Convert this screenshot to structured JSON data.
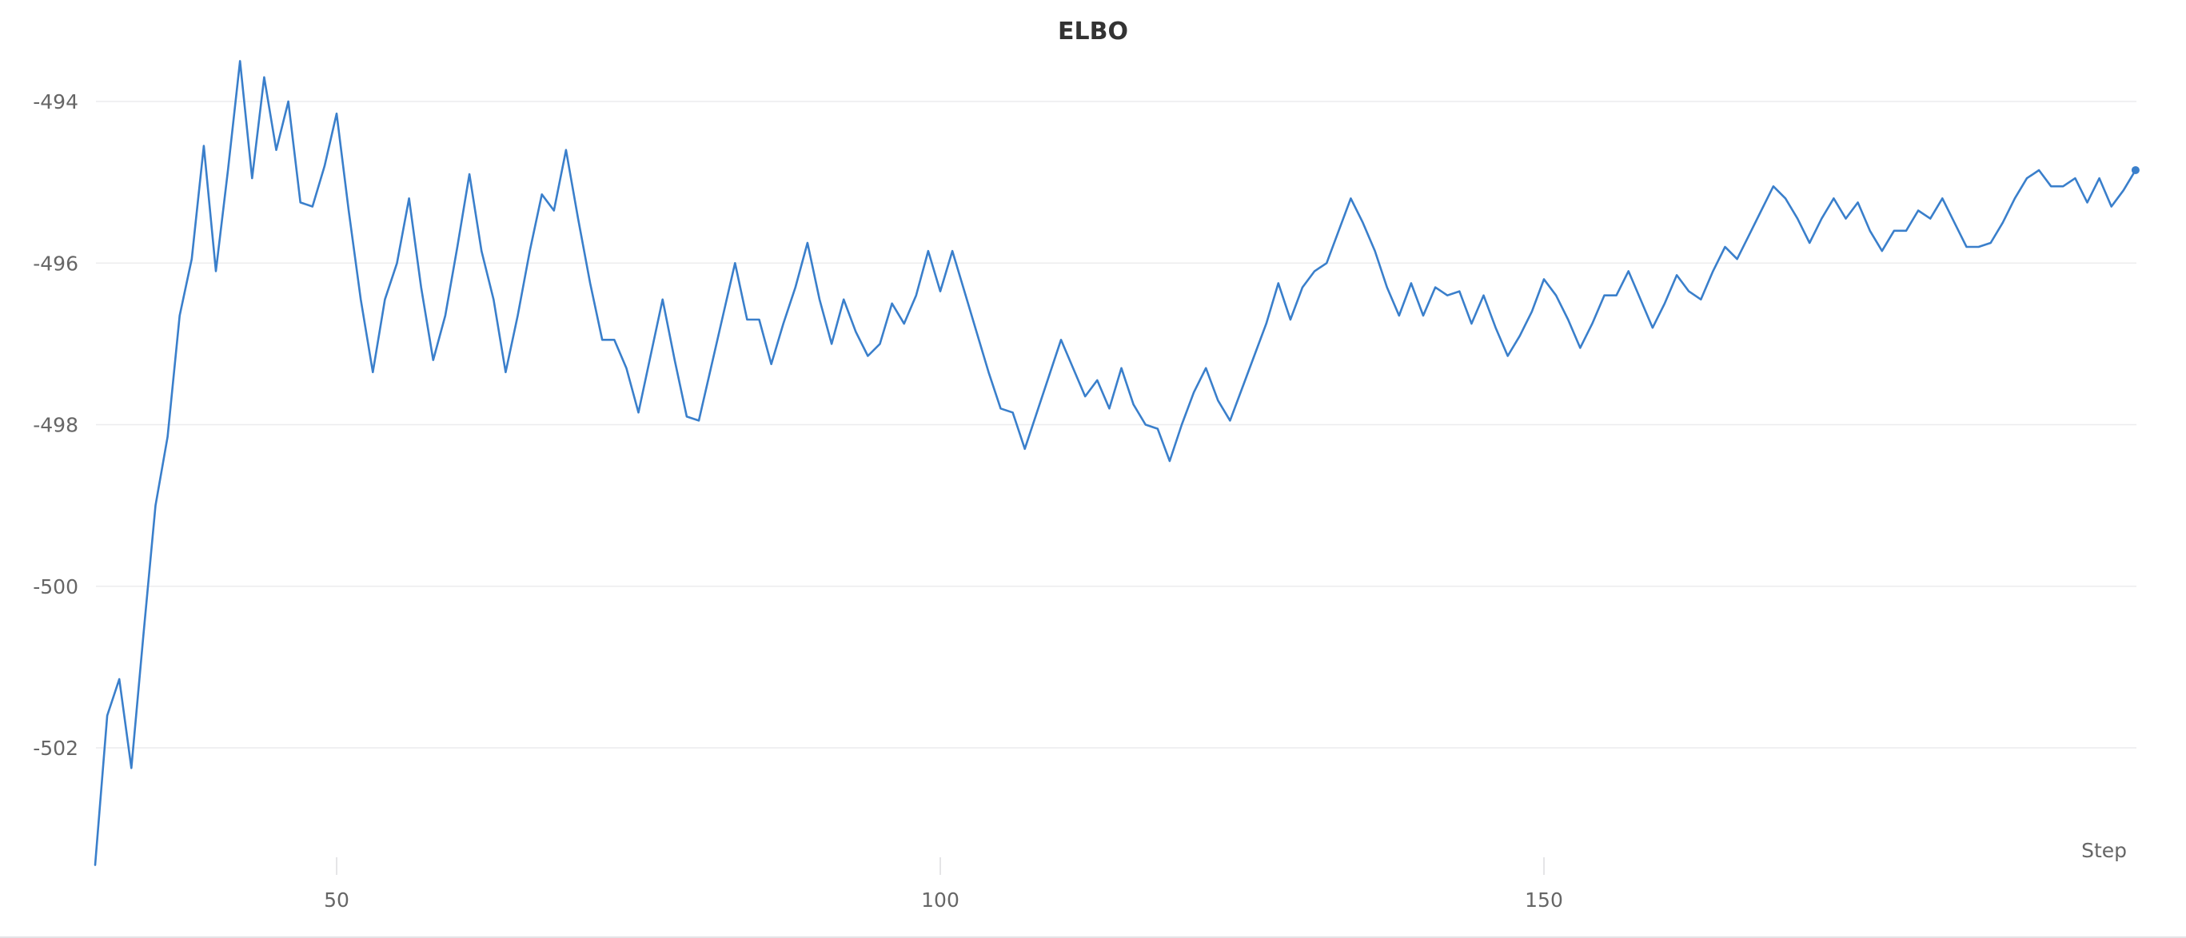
{
  "chart_data": {
    "type": "line",
    "title": "ELBO",
    "xlabel": "Step",
    "ylabel": "",
    "xlim": [
      30,
      199
    ],
    "ylim": [
      -503.5,
      -493.5
    ],
    "x_ticks": [
      50,
      100,
      150
    ],
    "y_ticks": [
      -494,
      -496,
      -498,
      -500,
      -502
    ],
    "grid": true,
    "legend": "none",
    "colors": {
      "line": "#3a7fcb",
      "grid": "#ececee",
      "tick_text": "#666666",
      "title": "#333333"
    },
    "series": [
      {
        "x": [
          30,
          31,
          32,
          33,
          34,
          35,
          36,
          37,
          38,
          39,
          40,
          41,
          42,
          43,
          44,
          45,
          46,
          47,
          48,
          49,
          50,
          51,
          52,
          53,
          54,
          55,
          56,
          57,
          58,
          59,
          60,
          61,
          62,
          63,
          64,
          65,
          66,
          67,
          68,
          69,
          70,
          71,
          72,
          73,
          74,
          75,
          76,
          77,
          78,
          79,
          80,
          81,
          82,
          83,
          84,
          85,
          86,
          87,
          88,
          89,
          90,
          91,
          92,
          93,
          94,
          95,
          96,
          97,
          98,
          99,
          100,
          101,
          102,
          103,
          104,
          105,
          106,
          107,
          108,
          109,
          110,
          111,
          112,
          113,
          114,
          115,
          116,
          117,
          118,
          119,
          120,
          121,
          122,
          123,
          124,
          125,
          126,
          127,
          128,
          129,
          130,
          131,
          132,
          133,
          134,
          135,
          136,
          137,
          138,
          139,
          140,
          141,
          142,
          143,
          144,
          145,
          146,
          147,
          148,
          149,
          150,
          151,
          152,
          153,
          154,
          155,
          156,
          157,
          158,
          159,
          160,
          161,
          162,
          163,
          164,
          165,
          166,
          167,
          168,
          169,
          170,
          171,
          172,
          173,
          174,
          175,
          176,
          177,
          178,
          179,
          180,
          181,
          182,
          183,
          184,
          185,
          186,
          187,
          188,
          189,
          190,
          191,
          192,
          193,
          194,
          195,
          196,
          197,
          198,
          199
        ],
        "values": [
          -503.45,
          -501.6,
          -501.15,
          -502.25,
          -500.6,
          -499.0,
          -498.15,
          -496.65,
          -495.95,
          -494.55,
          -496.1,
          -494.85,
          -493.5,
          -494.95,
          -493.7,
          -494.6,
          -494.0,
          -495.25,
          -495.3,
          -494.8,
          -494.15,
          -495.35,
          -496.45,
          -497.35,
          -496.45,
          -496.0,
          -495.2,
          -496.3,
          -497.2,
          -496.65,
          -495.8,
          -494.9,
          -495.85,
          -496.45,
          -497.35,
          -496.65,
          -495.85,
          -495.15,
          -495.35,
          -494.6,
          -495.45,
          -496.25,
          -496.95,
          -496.95,
          -497.3,
          -497.85,
          -497.15,
          -496.45,
          -497.2,
          -497.9,
          -497.95,
          -497.3,
          -496.65,
          -496.0,
          -496.7,
          -496.7,
          -497.25,
          -496.75,
          -496.3,
          -495.75,
          -496.45,
          -497.0,
          -496.45,
          -496.85,
          -497.15,
          -497.0,
          -496.5,
          -496.75,
          -496.4,
          -495.85,
          -496.35,
          -495.85,
          -496.35,
          -496.85,
          -497.35,
          -497.8,
          -497.85,
          -498.3,
          -497.85,
          -497.4,
          -496.95,
          -497.3,
          -497.65,
          -497.45,
          -497.8,
          -497.3,
          -497.75,
          -498.0,
          -498.05,
          -498.45,
          -498.0,
          -497.6,
          -497.3,
          -497.7,
          -497.95,
          -497.55,
          -497.15,
          -496.75,
          -496.25,
          -496.7,
          -496.3,
          -496.1,
          -496.0,
          -495.6,
          -495.2,
          -495.5,
          -495.85,
          -496.3,
          -496.65,
          -496.25,
          -496.65,
          -496.3,
          -496.4,
          -496.35,
          -496.75,
          -496.4,
          -496.8,
          -497.15,
          -496.9,
          -496.6,
          -496.2,
          -496.4,
          -496.7,
          -497.05,
          -496.75,
          -496.4,
          -496.4,
          -496.1,
          -496.45,
          -496.8,
          -496.5,
          -496.15,
          -496.35,
          -496.45,
          -496.1,
          -495.8,
          -495.95,
          -495.65,
          -495.35,
          -495.05,
          -495.2,
          -495.45,
          -495.75,
          -495.45,
          -495.2,
          -495.45,
          -495.25,
          -495.6,
          -495.85,
          -495.6,
          -495.6,
          -495.35,
          -495.45,
          -495.2,
          -495.5,
          -495.8,
          -495.8,
          -495.75,
          -495.5,
          -495.2,
          -494.95,
          -494.85,
          -495.05,
          -495.05,
          -494.95,
          -495.25,
          -494.95,
          -495.3,
          -495.1,
          -494.85
        ]
      }
    ]
  }
}
